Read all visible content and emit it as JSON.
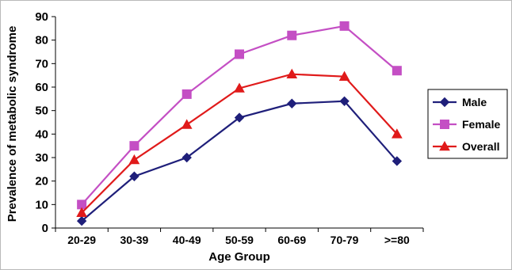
{
  "chart_data": {
    "type": "line",
    "title": "",
    "xlabel": "Age Group",
    "ylabel": "Prevalence of metabolic syndrome",
    "categories": [
      "20-29",
      "30-39",
      "40-49",
      "50-59",
      "60-69",
      "70-79",
      ">=80"
    ],
    "ylim": [
      0,
      90
    ],
    "yticks": [
      "0",
      "10",
      "20",
      "30",
      "40",
      "50",
      "60",
      "70",
      "80",
      "90"
    ],
    "grid": false,
    "legend_position": "right",
    "series": [
      {
        "name": "Male",
        "marker": "diamond",
        "color": "#1f1f7a",
        "values": [
          3,
          22,
          30,
          47,
          53,
          54,
          28.5
        ]
      },
      {
        "name": "Female",
        "marker": "square",
        "color": "#c44fc4",
        "values": [
          10,
          35,
          57,
          74,
          82,
          86,
          67
        ]
      },
      {
        "name": "Overall",
        "marker": "triangle",
        "color": "#e01a1a",
        "values": [
          6.5,
          29,
          44,
          59.5,
          65.5,
          64.5,
          40
        ]
      }
    ]
  }
}
